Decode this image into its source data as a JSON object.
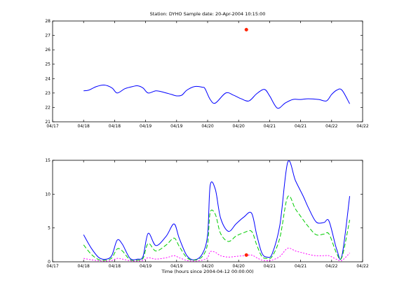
{
  "figure": {
    "title": "Station: DYHO  Sample date: 20-Apr-2004 10:15:00",
    "xlabel": "Time (hours since 2004-04-12 00:00:00)",
    "top_ylabel": "",
    "bottom_ylabel": ""
  },
  "colors": {
    "blue": "#0000ff",
    "green": "#00cc00",
    "magenta": "#ff00ff",
    "red": "#ff2200"
  },
  "chart_data": [
    {
      "type": "line",
      "xlim": [
        120,
        240
      ],
      "ylim": [
        21,
        28
      ],
      "xticks": [
        120,
        132,
        144,
        156,
        168,
        180,
        192,
        204,
        216,
        228,
        240
      ],
      "xticklabels": [
        "04/17",
        "04/18",
        "04/18",
        "04/19",
        "04/19",
        "04/20",
        "04/20",
        "04/21",
        "04/21",
        "04/22",
        "04/22"
      ],
      "yticks": [
        21,
        22,
        23,
        24,
        25,
        26,
        27,
        28
      ],
      "series": [
        {
          "color": "blue",
          "style": "solid",
          "x": [
            132,
            134,
            137,
            140,
            143,
            145,
            148,
            151,
            153,
            155,
            157,
            160,
            163,
            166,
            168,
            170,
            172,
            175,
            178,
            179,
            181,
            183,
            187,
            190,
            193,
            196,
            199,
            202,
            204,
            207,
            210,
            213,
            216,
            219,
            223,
            226,
            228,
            230,
            232,
            235
          ],
          "y": [
            23.15,
            23.2,
            23.45,
            23.55,
            23.35,
            23.0,
            23.3,
            23.45,
            23.5,
            23.35,
            23.0,
            23.15,
            23.05,
            22.9,
            22.8,
            22.85,
            23.2,
            23.45,
            23.4,
            23.3,
            22.55,
            22.3,
            23.0,
            22.85,
            22.6,
            22.45,
            22.95,
            23.25,
            22.8,
            21.95,
            22.3,
            22.55,
            22.55,
            22.6,
            22.55,
            22.45,
            22.9,
            23.2,
            23.2,
            22.25
          ]
        },
        {
          "color": "red",
          "style": "marker",
          "x": [
            195
          ],
          "y": [
            27.4
          ]
        }
      ]
    },
    {
      "type": "line",
      "xlim": [
        120,
        240
      ],
      "ylim": [
        0,
        15
      ],
      "xticks": [
        120,
        132,
        144,
        156,
        168,
        180,
        192,
        204,
        216,
        228,
        240
      ],
      "xticklabels": [
        "04/17",
        "04/18",
        "04/18",
        "04/19",
        "04/19",
        "04/20",
        "04/20",
        "04/21",
        "04/21",
        "04/22",
        "04/22"
      ],
      "yticks": [
        0,
        5,
        10,
        15
      ],
      "series": [
        {
          "color": "blue",
          "style": "solid",
          "x": [
            132,
            135,
            138,
            141,
            143,
            145,
            147,
            150,
            153,
            155,
            157,
            160,
            164,
            167,
            169,
            172,
            175,
            178,
            180,
            181,
            183,
            185,
            188,
            191,
            194,
            197,
            199,
            201,
            203,
            205,
            208,
            211,
            214,
            217,
            219,
            222,
            225,
            227,
            230,
            232,
            235
          ],
          "y": [
            4.0,
            2.0,
            0.6,
            0.4,
            1.0,
            3.2,
            2.6,
            0.5,
            0.4,
            0.8,
            4.2,
            2.4,
            3.8,
            5.6,
            3.5,
            0.9,
            0.3,
            1.2,
            4.0,
            11.3,
            10.7,
            6.5,
            4.5,
            5.6,
            6.6,
            7.2,
            4.0,
            1.3,
            0.7,
            1.2,
            5.5,
            14.7,
            12.0,
            9.7,
            8.0,
            5.9,
            5.8,
            6.0,
            1.8,
            0.9,
            9.7
          ]
        },
        {
          "color": "green",
          "style": "dashed",
          "x": [
            132,
            135,
            138,
            141,
            143,
            145,
            147,
            150,
            153,
            155,
            157,
            160,
            164,
            167,
            169,
            172,
            175,
            178,
            180,
            181,
            183,
            185,
            188,
            191,
            194,
            197,
            199,
            201,
            203,
            205,
            208,
            211,
            214,
            217,
            219,
            222,
            225,
            227,
            230,
            232,
            235
          ],
          "y": [
            2.5,
            1.1,
            0.3,
            0.25,
            0.6,
            1.9,
            1.6,
            0.3,
            0.25,
            0.5,
            2.7,
            1.6,
            2.5,
            3.5,
            2.3,
            0.6,
            0.25,
            0.8,
            2.7,
            7.3,
            7.0,
            4.2,
            3.0,
            3.8,
            4.3,
            4.5,
            2.5,
            0.8,
            0.5,
            0.8,
            3.6,
            9.6,
            7.8,
            6.2,
            5.2,
            4.0,
            4.1,
            4.1,
            1.2,
            0.7,
            6.2
          ]
        },
        {
          "color": "magenta",
          "style": "dotted",
          "x": [
            132,
            135,
            138,
            141,
            143,
            145,
            147,
            150,
            153,
            155,
            157,
            160,
            164,
            167,
            169,
            172,
            175,
            178,
            180,
            181,
            183,
            185,
            188,
            191,
            194,
            197,
            199,
            201,
            203,
            205,
            208,
            211,
            214,
            217,
            219,
            222,
            225,
            227,
            230,
            232,
            235
          ],
          "y": [
            0.5,
            0.3,
            0.15,
            0.1,
            0.2,
            0.5,
            0.4,
            0.15,
            0.1,
            0.2,
            0.6,
            0.4,
            0.6,
            0.9,
            0.6,
            0.2,
            0.1,
            0.25,
            0.6,
            1.5,
            1.4,
            0.9,
            0.7,
            0.8,
            0.9,
            1.0,
            0.6,
            0.25,
            0.15,
            0.25,
            0.8,
            2.0,
            1.6,
            1.3,
            1.1,
            0.9,
            0.9,
            0.9,
            0.35,
            0.2,
            1.3
          ]
        },
        {
          "color": "red",
          "style": "marker",
          "x": [
            195
          ],
          "y": [
            1.0
          ]
        }
      ]
    }
  ]
}
